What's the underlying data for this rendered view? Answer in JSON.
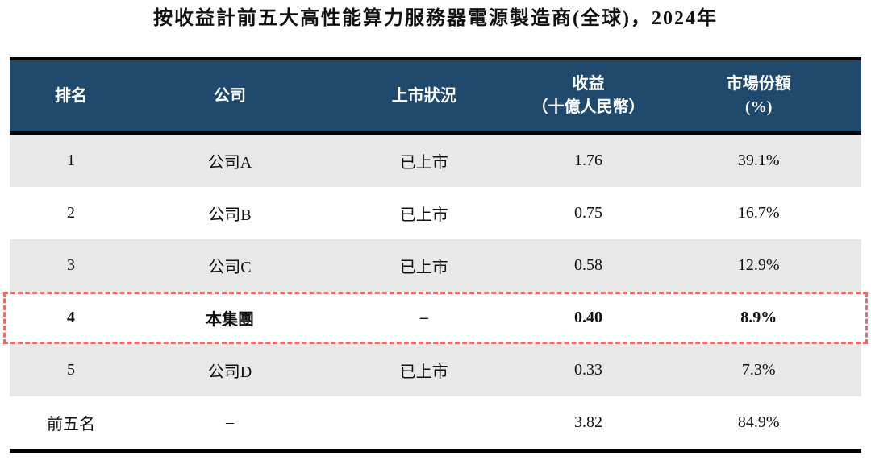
{
  "title": "按收益計前五大高性能算力服務器電源製造商(全球)，2024年",
  "table": {
    "columns": [
      {
        "label": "排名",
        "sublabel": ""
      },
      {
        "label": "公司",
        "sublabel": ""
      },
      {
        "label": "上市狀況",
        "sublabel": ""
      },
      {
        "label": "收益",
        "sublabel": "（十億人民幣）"
      },
      {
        "label": "市場份額",
        "sublabel": "(%)"
      }
    ],
    "rows": [
      {
        "rank": "1",
        "company": "公司A",
        "listing": "已上市",
        "revenue": "1.76",
        "share": "39.1%",
        "highlight": false,
        "total": false
      },
      {
        "rank": "2",
        "company": "公司B",
        "listing": "已上市",
        "revenue": "0.75",
        "share": "16.7%",
        "highlight": false,
        "total": false
      },
      {
        "rank": "3",
        "company": "公司C",
        "listing": "已上市",
        "revenue": "0.58",
        "share": "12.9%",
        "highlight": false,
        "total": false
      },
      {
        "rank": "4",
        "company": "本集團",
        "listing": "–",
        "revenue": "0.40",
        "share": "8.9%",
        "highlight": true,
        "total": false
      },
      {
        "rank": "5",
        "company": "公司D",
        "listing": "已上市",
        "revenue": "0.33",
        "share": "7.3%",
        "highlight": false,
        "total": false
      },
      {
        "rank": "前五名",
        "company": "–",
        "listing": "",
        "revenue": "3.82",
        "share": "84.9%",
        "highlight": false,
        "total": true
      }
    ]
  },
  "colors": {
    "header_bg": "#1F4A6E",
    "row_alt_bg": "#E8E8E8",
    "highlight_border": "#EB6A6A",
    "border": "#000000",
    "header_text": "#FFFFFF"
  }
}
